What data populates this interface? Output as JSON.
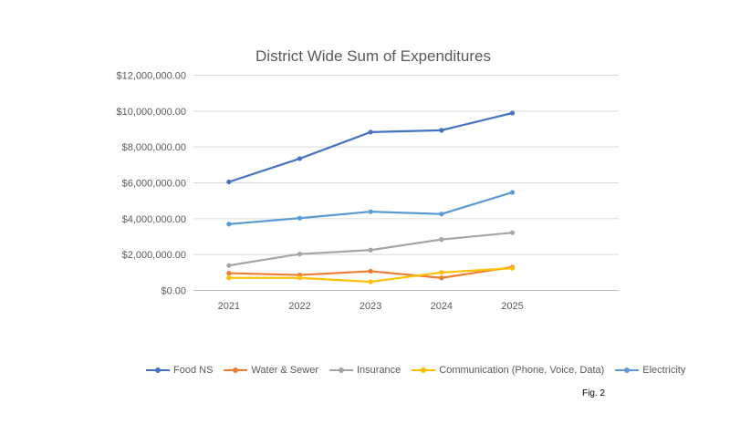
{
  "chart_data": {
    "type": "line",
    "title": "District Wide Sum of Expenditures",
    "categories": [
      "2021",
      "2022",
      "2023",
      "2024",
      "2025"
    ],
    "ylim": [
      0,
      12000000
    ],
    "yticks": [
      0,
      2000000,
      4000000,
      6000000,
      8000000,
      10000000,
      12000000
    ],
    "ytick_labels": [
      "$0.00",
      "$2,000,000.00",
      "$4,000,000.00",
      "$6,000,000.00",
      "$8,000,000.00",
      "$10,000,000.00",
      "$12,000,000.00"
    ],
    "grid": true,
    "legend_position": "bottom",
    "series": [
      {
        "name": "Food NS",
        "color": "#4472C4",
        "values": [
          6050000,
          7350000,
          8830000,
          8930000,
          9890000
        ]
      },
      {
        "name": "Water & Sewer",
        "color": "#ED7D31",
        "values": [
          960000,
          860000,
          1070000,
          700000,
          1300000
        ]
      },
      {
        "name": "Insurance",
        "color": "#A5A5A5",
        "values": [
          1390000,
          2030000,
          2250000,
          2840000,
          3220000
        ]
      },
      {
        "name": "Communication (Phone, Voice, Data)",
        "color": "#FFC000",
        "values": [
          700000,
          700000,
          480000,
          1000000,
          1240000
        ]
      },
      {
        "name": "Electricity",
        "color": "#5B9BD5",
        "values": [
          3700000,
          4030000,
          4390000,
          4260000,
          5470000
        ]
      }
    ]
  },
  "caption": "Fig. 2"
}
